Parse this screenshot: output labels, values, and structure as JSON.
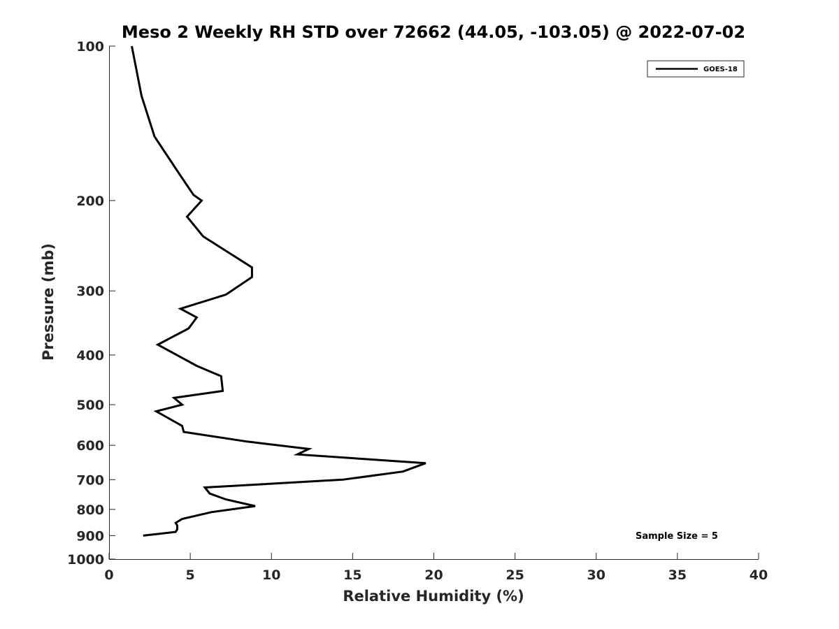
{
  "chart_data": {
    "type": "line",
    "title": "Meso 2 Weekly RH STD over 72662 (44.05, -103.05) @ 2022-07-02",
    "xlabel": "Relative Humidity (%)",
    "ylabel": "Pressure (mb)",
    "xlim": [
      0,
      40
    ],
    "ylim": [
      100,
      1000
    ],
    "yscale": "log",
    "y_reversed": true,
    "grid": false,
    "legend_position": "top-right",
    "x_ticks": [
      0,
      5,
      10,
      15,
      20,
      25,
      30,
      35,
      40
    ],
    "y_ticks": [
      100,
      200,
      300,
      400,
      500,
      600,
      700,
      800,
      900,
      1000
    ],
    "series": [
      {
        "name": "GOES-18",
        "color": "#000000",
        "x": [
          1.4,
          2.0,
          2.8,
          4.3,
          5.2,
          5.7,
          4.8,
          5.8,
          8.8,
          8.8,
          7.2,
          4.4,
          5.4,
          4.9,
          3.0,
          5.4,
          6.9,
          7.0,
          4.0,
          4.5,
          2.9,
          4.5,
          4.6,
          8.5,
          12.3,
          11.6,
          19.5,
          18.1,
          14.4,
          5.9,
          6.2,
          7.2,
          9.0,
          6.3,
          4.5,
          4.1,
          4.2,
          4.2,
          4.1,
          2.1
        ],
        "y": [
          100,
          125,
          150,
          177,
          195,
          200,
          215,
          235,
          270,
          282,
          305,
          325,
          338,
          355,
          382,
          420,
          440,
          470,
          485,
          500,
          515,
          550,
          565,
          590,
          610,
          625,
          650,
          675,
          700,
          725,
          745,
          765,
          788,
          810,
          835,
          850,
          860,
          875,
          885,
          900
        ]
      }
    ],
    "annotation": "Sample Size = 5"
  }
}
